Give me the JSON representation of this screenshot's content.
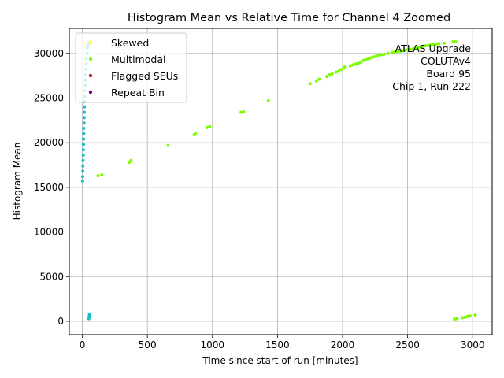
{
  "chart_data": {
    "type": "scatter",
    "title": "Histogram Mean vs Relative Time for Channel 4 Zoomed",
    "xlabel": "Time since start of run [minutes]",
    "ylabel": "Histogram Mean",
    "xlim": [
      -100,
      3150
    ],
    "ylim": [
      -1500,
      32800
    ],
    "xticks": [
      0,
      500,
      1000,
      1500,
      2000,
      2500,
      3000
    ],
    "yticks": [
      0,
      5000,
      10000,
      15000,
      20000,
      25000,
      30000
    ],
    "grid": true,
    "legend_position": "top-left",
    "annotation": [
      "ATLAS Upgrade",
      "COLUTAv4",
      "Board 95",
      "Chip 1, Run 222"
    ],
    "series": [
      {
        "name": "Skewed",
        "color": "#ffff33",
        "points": [
          [
            10,
            31000
          ],
          [
            12,
            31200
          ]
        ]
      },
      {
        "name": "Multimodal",
        "color": "#7cfc00",
        "points": [
          [
            120,
            16300
          ],
          [
            150,
            16400
          ],
          [
            360,
            17800
          ],
          [
            375,
            18000
          ],
          [
            660,
            19700
          ],
          [
            860,
            20900
          ],
          [
            870,
            21000
          ],
          [
            960,
            21700
          ],
          [
            980,
            21800
          ],
          [
            1220,
            23400
          ],
          [
            1240,
            23450
          ],
          [
            1430,
            24700
          ],
          [
            1750,
            26600
          ],
          [
            1800,
            26900
          ],
          [
            1820,
            27100
          ],
          [
            1880,
            27400
          ],
          [
            1900,
            27600
          ],
          [
            1920,
            27700
          ],
          [
            1950,
            27900
          ],
          [
            1970,
            28000
          ],
          [
            1990,
            28200
          ],
          [
            2010,
            28400
          ],
          [
            2020,
            28500
          ],
          [
            2060,
            28600
          ],
          [
            2080,
            28700
          ],
          [
            2100,
            28800
          ],
          [
            2120,
            28900
          ],
          [
            2140,
            29000
          ],
          [
            2160,
            29200
          ],
          [
            2180,
            29300
          ],
          [
            2200,
            29400
          ],
          [
            2220,
            29500
          ],
          [
            2240,
            29600
          ],
          [
            2260,
            29700
          ],
          [
            2280,
            29800
          ],
          [
            2300,
            29850
          ],
          [
            2320,
            29900
          ],
          [
            2350,
            30000
          ],
          [
            2380,
            30100
          ],
          [
            2400,
            30150
          ],
          [
            2420,
            30200
          ],
          [
            2440,
            30250
          ],
          [
            2460,
            30300
          ],
          [
            2480,
            30350
          ],
          [
            2500,
            30400
          ],
          [
            2520,
            30450
          ],
          [
            2540,
            30500
          ],
          [
            2560,
            30550
          ],
          [
            2580,
            30600
          ],
          [
            2600,
            30700
          ],
          [
            2620,
            30800
          ],
          [
            2640,
            30850
          ],
          [
            2660,
            30900
          ],
          [
            2680,
            30950
          ],
          [
            2700,
            31000
          ],
          [
            2720,
            31050
          ],
          [
            2740,
            31100
          ],
          [
            2780,
            31150
          ],
          [
            2850,
            31300
          ],
          [
            2870,
            31300
          ],
          [
            2860,
            250
          ],
          [
            2880,
            300
          ],
          [
            2920,
            400
          ],
          [
            2940,
            450
          ],
          [
            2960,
            550
          ],
          [
            2980,
            600
          ],
          [
            3020,
            700
          ],
          [
            50,
            31300
          ]
        ]
      },
      {
        "name": "Flagged SEUs",
        "color": "#b22222",
        "points": []
      },
      {
        "name": "Repeat Bin",
        "color": "#800080",
        "points": []
      },
      {
        "name": "",
        "color": "#17becf",
        "points": [
          [
            2,
            15700
          ],
          [
            3,
            16200
          ],
          [
            4,
            16800
          ],
          [
            5,
            17400
          ],
          [
            6,
            18000
          ],
          [
            7,
            18600
          ],
          [
            8,
            19200
          ],
          [
            9,
            19800
          ],
          [
            10,
            20400
          ],
          [
            11,
            21000
          ],
          [
            12,
            21600
          ],
          [
            13,
            22200
          ],
          [
            14,
            22800
          ],
          [
            15,
            23400
          ],
          [
            16,
            24000
          ],
          [
            17,
            24600
          ],
          [
            18,
            25200
          ],
          [
            20,
            25800
          ],
          [
            22,
            26400
          ],
          [
            24,
            27000
          ],
          [
            26,
            27600
          ],
          [
            28,
            28200
          ],
          [
            30,
            28800
          ],
          [
            33,
            29400
          ],
          [
            36,
            30000
          ],
          [
            40,
            30600
          ],
          [
            45,
            31000
          ],
          [
            50,
            300
          ],
          [
            52,
            450
          ],
          [
            54,
            600
          ],
          [
            55,
            750
          ]
        ]
      }
    ]
  }
}
